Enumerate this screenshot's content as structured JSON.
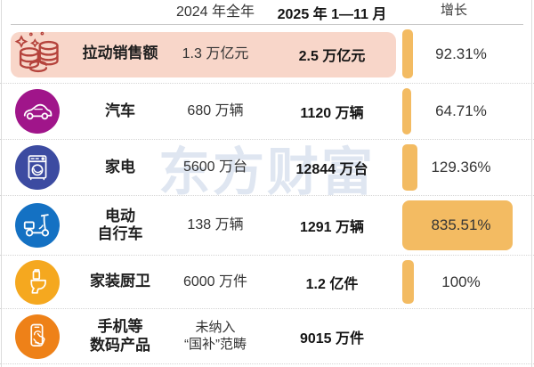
{
  "watermark": "东方财富",
  "header": {
    "col_2024": "2024 年全年",
    "col_2025": "2025 年 1—11 月",
    "col_growth": "增长"
  },
  "rows": [
    {
      "icon": "coins-icon",
      "label": "拉动销售额",
      "v2024": "1.3 万亿元",
      "v2025": "2.5 万亿元",
      "growth": "92.31%",
      "growth_value": 92.31,
      "row_highlight": true,
      "icon_color": "#b5433c"
    },
    {
      "icon": "car-icon",
      "label": "汽车",
      "v2024": "680 万辆",
      "v2025": "1120 万辆",
      "growth": "64.71%",
      "growth_value": 64.71,
      "icon_color": "#a0158a"
    },
    {
      "icon": "washing-machine-icon",
      "label": "家电",
      "v2024": "5600 万台",
      "v2025": "12844 万台",
      "growth": "129.36%",
      "growth_value": 129.36,
      "icon_color": "#3c4ba1"
    },
    {
      "icon": "scooter-icon",
      "label": "电动\n自行车",
      "v2024": "138 万辆",
      "v2025": "1291 万辆",
      "growth": "835.51%",
      "growth_value": 835.51,
      "growth_block": true,
      "icon_color": "#1471c3"
    },
    {
      "icon": "toilet-icon",
      "label": "家装厨卫",
      "v2024": "6000 万件",
      "v2025": "1.2 亿件",
      "growth": "100%",
      "growth_value": 100,
      "icon_color": "#f5a81f"
    },
    {
      "icon": "phone-tap-icon",
      "label": "手机等\n数码产品",
      "v2024": "未纳入\n“国补”范畴",
      "v2025": "9015 万件",
      "growth": "",
      "growth_value": null,
      "icon_color": "#ee8118"
    }
  ],
  "colors": {
    "row_highlight_pink": "#f8d6c9",
    "growth_bar_orange": "#f3bb62",
    "watermark_blue": "#dfe6f1"
  },
  "chart_data": {
    "type": "table",
    "columns": [
      "",
      "2024 年全年",
      "2025 年 1—11 月",
      "增长"
    ],
    "rows": [
      [
        "拉动销售额",
        "1.3 万亿元",
        "2.5 万亿元",
        "92.31%"
      ],
      [
        "汽车",
        "680 万辆",
        "1120 万辆",
        "64.71%"
      ],
      [
        "家电",
        "5600 万台",
        "12844 万台",
        "129.36%"
      ],
      [
        "电动自行车",
        "138 万辆",
        "1291 万辆",
        "835.51%"
      ],
      [
        "家装厨卫",
        "6000 万件",
        "1.2 亿件",
        "100%"
      ],
      [
        "手机等数码产品",
        "未纳入“国补”范畴",
        "9015 万件",
        ""
      ]
    ],
    "growth_values_percent": [
      92.31,
      64.71,
      129.36,
      835.51,
      100,
      null
    ]
  }
}
